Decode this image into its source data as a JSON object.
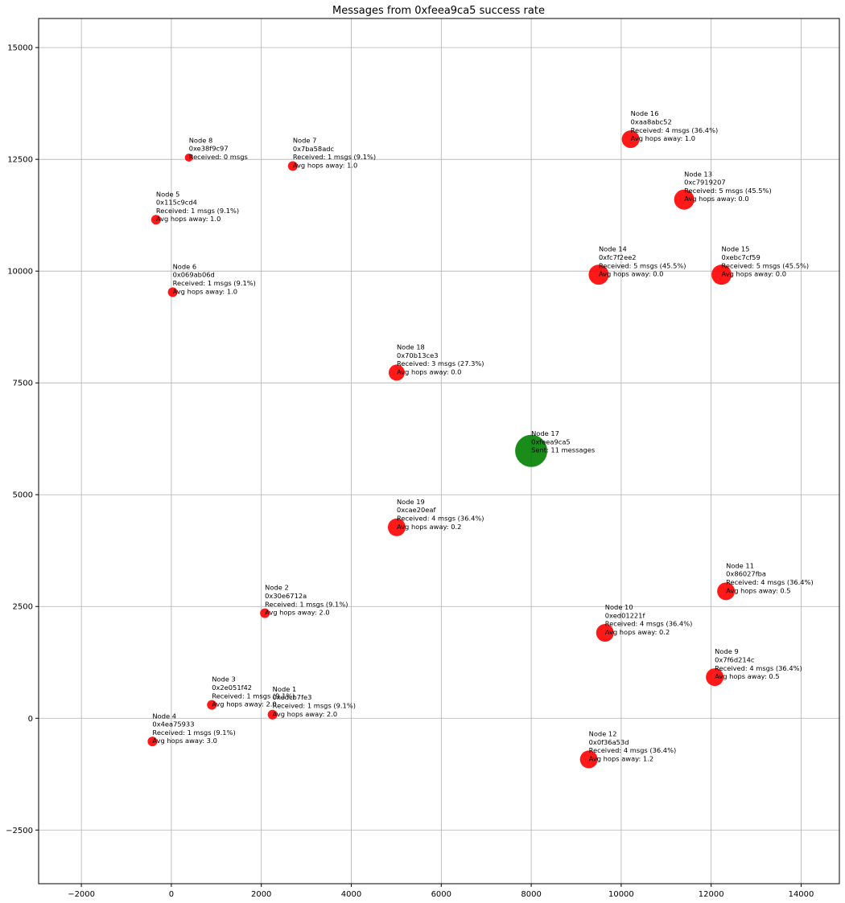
{
  "chart_data": {
    "type": "scatter",
    "title": "Messages from 0xfeea9ca5 success rate",
    "xlabel": "",
    "ylabel": "",
    "xlim": [
      -2950,
      14850
    ],
    "ylim": [
      -3700,
      15650
    ],
    "xticks": [
      -2000,
      0,
      2000,
      4000,
      6000,
      8000,
      10000,
      12000,
      14000
    ],
    "yticks": [
      -2500,
      0,
      2500,
      5000,
      7500,
      10000,
      12500,
      15000
    ],
    "grid": true,
    "colors": {
      "received": "#ff0000",
      "sender": "#008000"
    },
    "points": [
      {
        "x": 2250,
        "y": 80,
        "size": 6,
        "color": "received",
        "lines": [
          "Node 1",
          "0xedcb7fe3",
          "Received: 1 msgs (9.1%)",
          "Avg hops away: 2.0"
        ]
      },
      {
        "x": 2080,
        "y": 2350,
        "size": 6,
        "color": "received",
        "lines": [
          "Node 2",
          "0x30e6712a",
          "Received: 1 msgs (9.1%)",
          "Avg hops away: 2.0"
        ]
      },
      {
        "x": 900,
        "y": 300,
        "size": 6,
        "color": "received",
        "lines": [
          "Node 3",
          "0x2e051f42",
          "Received: 1 msgs (9.1%)",
          "Avg hops away: 2.0"
        ]
      },
      {
        "x": -420,
        "y": -520,
        "size": 6,
        "color": "received",
        "lines": [
          "Node 4",
          "0x4ea75933",
          "Received: 1 msgs (9.1%)",
          "Avg hops away: 3.0"
        ]
      },
      {
        "x": -340,
        "y": 11150,
        "size": 6,
        "color": "received",
        "lines": [
          "Node 5",
          "0x115c9cd4",
          "Received: 1 msgs (9.1%)",
          "Avg hops away: 1.0"
        ]
      },
      {
        "x": 30,
        "y": 9530,
        "size": 6,
        "color": "received",
        "lines": [
          "Node 6",
          "0x069ab06d",
          "Received: 1 msgs (9.1%)",
          "Avg hops away: 1.0"
        ]
      },
      {
        "x": 2700,
        "y": 12350,
        "size": 6,
        "color": "received",
        "lines": [
          "Node 7",
          "0x7ba58adc",
          "Received: 1 msgs (9.1%)",
          "Avg hops away: 1.0"
        ]
      },
      {
        "x": 390,
        "y": 12540,
        "size": 5,
        "color": "received",
        "lines": [
          "Node 8",
          "0xe38f9c97",
          "Received: 0 msgs"
        ]
      },
      {
        "x": 12080,
        "y": 920,
        "size": 11,
        "color": "received",
        "lines": [
          "Node 9",
          "0x7f6d214c",
          "Received: 4 msgs (36.4%)",
          "Avg hops away: 0.5"
        ]
      },
      {
        "x": 9640,
        "y": 1910,
        "size": 11,
        "color": "received",
        "lines": [
          "Node 10",
          "0xed01221f",
          "Received: 4 msgs (36.4%)",
          "Avg hops away: 0.2"
        ]
      },
      {
        "x": 12330,
        "y": 2840,
        "size": 11,
        "color": "received",
        "lines": [
          "Node 11",
          "0x86027fba",
          "Received: 4 msgs (36.4%)",
          "Avg hops away: 0.5"
        ]
      },
      {
        "x": 9280,
        "y": -920,
        "size": 11,
        "color": "received",
        "lines": [
          "Node 12",
          "0x0f36a53d",
          "Received: 4 msgs (36.4%)",
          "Avg hops away: 1.2"
        ]
      },
      {
        "x": 11400,
        "y": 11600,
        "size": 12.5,
        "color": "received",
        "lines": [
          "Node 13",
          "0xc7919207",
          "Received: 5 msgs (45.5%)",
          "Avg hops away: 0.0"
        ]
      },
      {
        "x": 9500,
        "y": 9920,
        "size": 12.5,
        "color": "received",
        "lines": [
          "Node 14",
          "0xfc7f2ee2",
          "Received: 5 msgs (45.5%)",
          "Avg hops away: 0.0"
        ]
      },
      {
        "x": 12230,
        "y": 9920,
        "size": 12.5,
        "color": "received",
        "lines": [
          "Node 15",
          "0xebc7cf59",
          "Received: 5 msgs (45.5%)",
          "Avg hops away: 0.0"
        ]
      },
      {
        "x": 10210,
        "y": 12950,
        "size": 11,
        "color": "received",
        "lines": [
          "Node 16",
          "0xaa8abc52",
          "Received: 4 msgs (36.4%)",
          "Avg hops away: 1.0"
        ]
      },
      {
        "x": 8000,
        "y": 5980,
        "size": 20,
        "color": "sender",
        "lines": [
          "Node 17",
          "0xfeea9ca5",
          "Sent: 11 messages"
        ]
      },
      {
        "x": 5010,
        "y": 7730,
        "size": 10,
        "color": "received",
        "lines": [
          "Node 18",
          "0x70b13ce3",
          "Received: 3 msgs (27.3%)",
          "Avg hops away: 0.0"
        ]
      },
      {
        "x": 5010,
        "y": 4270,
        "size": 11,
        "color": "received",
        "lines": [
          "Node 19",
          "0xcae20eaf",
          "Received: 4 msgs (36.4%)",
          "Avg hops away: 0.2"
        ]
      }
    ]
  }
}
